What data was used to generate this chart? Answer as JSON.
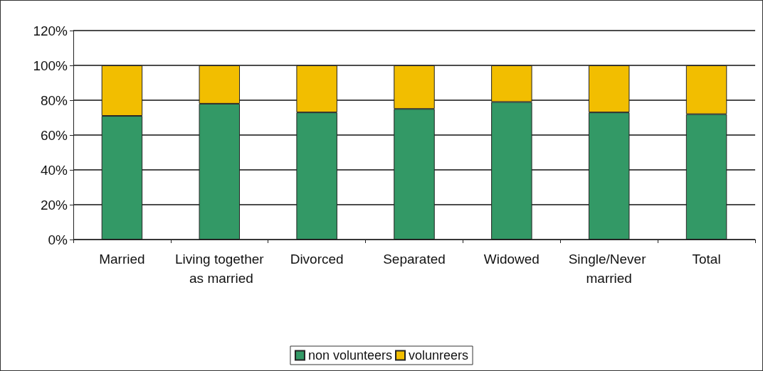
{
  "chart_data": {
    "type": "bar",
    "stacked": true,
    "categories": [
      "Married",
      "Living together as married",
      "Divorced",
      "Separated",
      "Widowed",
      "Single/Never married",
      "Total"
    ],
    "series": [
      {
        "name": "non volunteers",
        "color": "#339966",
        "values": [
          71,
          78,
          73,
          75,
          79,
          73,
          72
        ]
      },
      {
        "name": "volunreers",
        "color": "#f2be00",
        "values": [
          29,
          22,
          27,
          25,
          21,
          27,
          28
        ]
      }
    ],
    "ylim": [
      0,
      120
    ],
    "yticks": [
      {
        "value": 0,
        "label": "0%"
      },
      {
        "value": 20,
        "label": "20%"
      },
      {
        "value": 40,
        "label": "40%"
      },
      {
        "value": 60,
        "label": "60%"
      },
      {
        "value": 80,
        "label": "80%"
      },
      {
        "value": 100,
        "label": "100%"
      },
      {
        "value": 120,
        "label": "120%"
      }
    ],
    "grid": "y",
    "legend": "bottom"
  }
}
